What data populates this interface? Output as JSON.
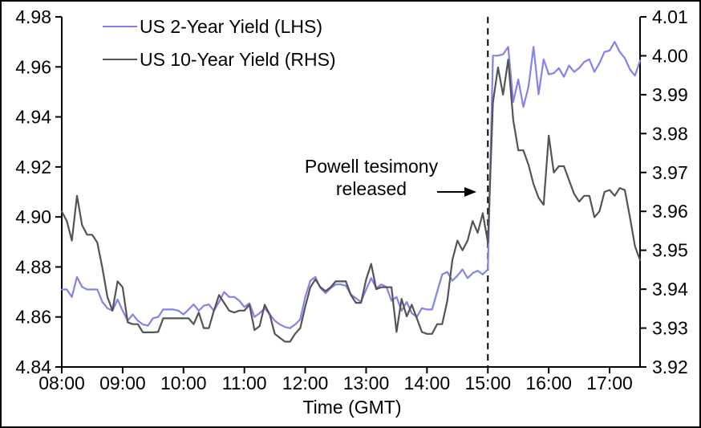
{
  "chart_data": {
    "type": "line",
    "title": "",
    "xlabel": "Time (GMT)",
    "grid": "off",
    "legend_position": "top-left-inside",
    "x_axis": {
      "range_hours": [
        8,
        17.5
      ],
      "ticks": [
        {
          "h": 8,
          "label": "08:00"
        },
        {
          "h": 9,
          "label": "09:00"
        },
        {
          "h": 10,
          "label": "10:00"
        },
        {
          "h": 11,
          "label": "11:00"
        },
        {
          "h": 12,
          "label": "12:00"
        },
        {
          "h": 13,
          "label": "13:00"
        },
        {
          "h": 14,
          "label": "14:00"
        },
        {
          "h": 15,
          "label": "15:00"
        },
        {
          "h": 16,
          "label": "16:00"
        },
        {
          "h": 17,
          "label": "17:00"
        }
      ]
    },
    "left_axis": {
      "range": [
        4.84,
        4.98
      ],
      "ticks": [
        "4.84",
        "4.86",
        "4.88",
        "4.90",
        "4.92",
        "4.94",
        "4.96",
        "4.98"
      ]
    },
    "right_axis": {
      "range": [
        3.92,
        4.01
      ],
      "ticks": [
        "3.92",
        "3.93",
        "3.94",
        "3.95",
        "3.96",
        "3.97",
        "3.98",
        "3.99",
        "4.00",
        "4.01"
      ]
    },
    "event_line": {
      "hour": 15,
      "style": "dashed",
      "color": "#000000"
    },
    "annotation": {
      "line1": "Powell tesimony",
      "line2": "released",
      "arrow": "right"
    },
    "start_hour": 8,
    "sample_interval_minutes": 5,
    "series": [
      {
        "name": "US 2-Year Yield (LHS)",
        "axis": "left",
        "color": "#8282EB",
        "values": [
          4.871,
          4.871,
          4.868,
          4.876,
          4.872,
          4.871,
          4.871,
          4.871,
          4.866,
          4.8635,
          4.8625,
          4.867,
          4.8625,
          4.8585,
          4.861,
          4.8585,
          4.857,
          4.8565,
          4.8595,
          4.86,
          4.863,
          4.863,
          4.863,
          4.8625,
          4.861,
          4.863,
          4.865,
          4.8625,
          4.8645,
          4.865,
          4.8625,
          4.866,
          4.87,
          4.868,
          4.868,
          4.8665,
          4.864,
          4.8655,
          4.86,
          4.8615,
          4.8635,
          4.861,
          4.8585,
          4.857,
          4.856,
          4.8555,
          4.857,
          4.859,
          4.868,
          4.8745,
          4.876,
          4.8715,
          4.8695,
          4.8715,
          4.873,
          4.873,
          4.8725,
          4.869,
          4.8675,
          4.866,
          4.871,
          4.8755,
          4.8715,
          4.873,
          4.872,
          4.8665,
          4.868,
          4.8625,
          4.866,
          4.8615,
          4.86,
          4.8635,
          4.863,
          4.863,
          4.87,
          4.877,
          4.878,
          4.8745,
          4.8765,
          4.879,
          4.8755,
          4.8775,
          4.8785,
          4.877,
          4.879,
          4.9645,
          4.9645,
          4.965,
          4.968,
          4.946,
          4.955,
          4.944,
          4.952,
          4.968,
          4.949,
          4.963,
          4.957,
          4.9575,
          4.9595,
          4.956,
          4.9605,
          4.958,
          4.9595,
          4.962,
          4.963,
          4.958,
          4.9615,
          4.966,
          4.9665,
          4.97,
          4.966,
          4.9635,
          4.959,
          4.9565,
          4.9625
        ]
      },
      {
        "name": "US 10-Year Yield (RHS)",
        "axis": "right",
        "color": "#545454",
        "values": [
          3.96,
          3.9575,
          3.9525,
          3.964,
          3.9565,
          3.954,
          3.954,
          3.952,
          3.9455,
          3.938,
          3.9345,
          3.942,
          3.9405,
          3.9315,
          3.931,
          3.931,
          3.9289,
          3.9289,
          3.9289,
          3.929,
          3.9325,
          3.9325,
          3.9325,
          3.9325,
          3.9325,
          3.9325,
          3.931,
          3.934,
          3.93,
          3.93,
          3.9345,
          3.9385,
          3.9365,
          3.9345,
          3.934,
          3.9345,
          3.9345,
          3.936,
          3.9295,
          3.9305,
          3.936,
          3.9335,
          3.9285,
          3.9275,
          3.9265,
          3.9265,
          3.9285,
          3.93,
          3.9355,
          3.9405,
          3.9425,
          3.9405,
          3.9395,
          3.9405,
          3.942,
          3.942,
          3.942,
          3.9385,
          3.9365,
          3.9365,
          3.9425,
          3.9465,
          3.94,
          3.9405,
          3.9405,
          3.9405,
          3.929,
          3.9375,
          3.933,
          3.936,
          3.9325,
          3.929,
          3.9285,
          3.9285,
          3.931,
          3.931,
          3.937,
          3.9475,
          3.9525,
          3.95,
          3.9525,
          3.9575,
          3.9545,
          3.9595,
          3.952,
          3.988,
          3.997,
          3.99,
          3.999,
          3.9835,
          3.9757,
          3.9757,
          3.972,
          3.967,
          3.9635,
          3.9617,
          3.9795,
          3.97,
          3.9716,
          3.9716,
          3.968,
          3.9645,
          3.9625,
          3.964,
          3.964,
          3.9585,
          3.96,
          3.965,
          3.9655,
          3.964,
          3.966,
          3.9655,
          3.9585,
          3.951,
          3.9475
        ]
      }
    ]
  }
}
